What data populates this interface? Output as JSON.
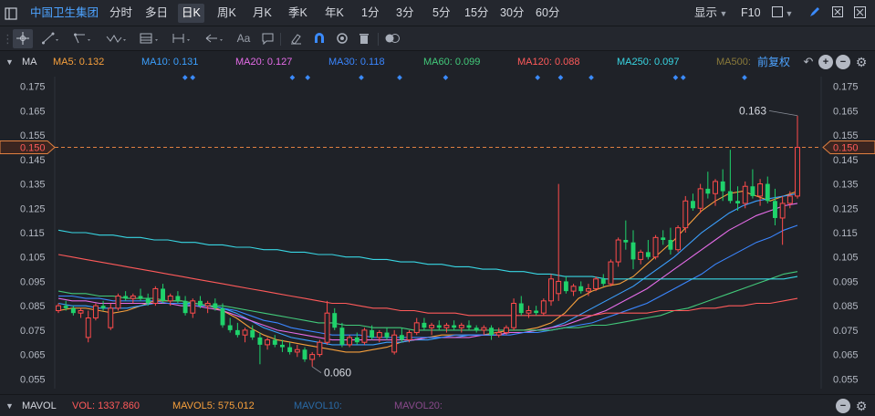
{
  "header": {
    "stock_name": "中国卫生集团",
    "periods": [
      "分时",
      "多日",
      "日K",
      "周K",
      "月K",
      "季K",
      "年K",
      "1分",
      "3分",
      "5分",
      "15分",
      "30分",
      "60分"
    ],
    "active_period": "日K",
    "display_label": "显示",
    "f10_label": "F10"
  },
  "toolbar": {
    "text_tool_label": "Aa"
  },
  "indicators": {
    "main_label": "MA",
    "items": [
      {
        "label": "MA5: 0.132",
        "color": "#f7a03c"
      },
      {
        "label": "MA10: 0.131",
        "color": "#3ba0ff"
      },
      {
        "label": "MA20: 0.127",
        "color": "#e56ce8"
      },
      {
        "label": "MA30: 0.118",
        "color": "#3a86ff"
      },
      {
        "label": "MA60: 0.099",
        "color": "#42c97a"
      },
      {
        "label": "MA120: 0.088",
        "color": "#ff5a5a"
      },
      {
        "label": "MA250: 0.097",
        "color": "#38d6e3"
      },
      {
        "label": "MA500:",
        "color": "#8a7a3a"
      }
    ],
    "adjust_label": "前复权"
  },
  "volume": {
    "label": "MAVOL",
    "vol": "VOL: 1337.860",
    "mavol5": "MAVOL5: 575.012",
    "mavol10": "MAVOL10:",
    "mavol20": "MAVOL20:"
  },
  "chart_data": {
    "type": "candlestick",
    "y_ticks": [
      "0.175",
      "0.165",
      "0.155",
      "0.145",
      "0.135",
      "0.125",
      "0.115",
      "0.105",
      "0.095",
      "0.085",
      "0.075",
      "0.065",
      "0.055"
    ],
    "ylim": [
      0.051,
      0.179
    ],
    "current_price_label": "0.150",
    "current_price": 0.15,
    "high_annotation": "0.163",
    "low_annotation": "0.060",
    "colors": {
      "up": "#ff4b4b",
      "down": "#1fd26b",
      "price_line": "#e08040"
    },
    "candles": [
      [
        0.083,
        0.086,
        0.082,
        0.085
      ],
      [
        0.085,
        0.087,
        0.083,
        0.084
      ],
      [
        0.084,
        0.085,
        0.081,
        0.082
      ],
      [
        0.082,
        0.084,
        0.08,
        0.083
      ],
      [
        0.072,
        0.083,
        0.07,
        0.08
      ],
      [
        0.08,
        0.086,
        0.079,
        0.085
      ],
      [
        0.085,
        0.087,
        0.083,
        0.084
      ],
      [
        0.076,
        0.086,
        0.075,
        0.084
      ],
      [
        0.084,
        0.09,
        0.083,
        0.089
      ],
      [
        0.089,
        0.091,
        0.087,
        0.088
      ],
      [
        0.088,
        0.09,
        0.086,
        0.089
      ],
      [
        0.089,
        0.092,
        0.087,
        0.088
      ],
      [
        0.088,
        0.09,
        0.085,
        0.086
      ],
      [
        0.086,
        0.093,
        0.085,
        0.092
      ],
      [
        0.092,
        0.094,
        0.086,
        0.087
      ],
      [
        0.087,
        0.09,
        0.085,
        0.089
      ],
      [
        0.089,
        0.091,
        0.086,
        0.087
      ],
      [
        0.087,
        0.089,
        0.081,
        0.082
      ],
      [
        0.082,
        0.088,
        0.08,
        0.087
      ],
      [
        0.087,
        0.089,
        0.084,
        0.085
      ],
      [
        0.085,
        0.087,
        0.082,
        0.086
      ],
      [
        0.086,
        0.088,
        0.083,
        0.084
      ],
      [
        0.084,
        0.086,
        0.076,
        0.077
      ],
      [
        0.077,
        0.08,
        0.074,
        0.075
      ],
      [
        0.075,
        0.078,
        0.072,
        0.073
      ],
      [
        0.073,
        0.076,
        0.07,
        0.075
      ],
      [
        0.075,
        0.077,
        0.071,
        0.072
      ],
      [
        0.072,
        0.074,
        0.061,
        0.069
      ],
      [
        0.069,
        0.072,
        0.067,
        0.071
      ],
      [
        0.071,
        0.073,
        0.068,
        0.069
      ],
      [
        0.069,
        0.071,
        0.066,
        0.068
      ],
      [
        0.068,
        0.07,
        0.065,
        0.066
      ],
      [
        0.066,
        0.069,
        0.064,
        0.067
      ],
      [
        0.067,
        0.068,
        0.062,
        0.063
      ],
      [
        0.063,
        0.066,
        0.06,
        0.065
      ],
      [
        0.065,
        0.071,
        0.064,
        0.07
      ],
      [
        0.07,
        0.087,
        0.069,
        0.082
      ],
      [
        0.082,
        0.084,
        0.075,
        0.076
      ],
      [
        0.076,
        0.078,
        0.068,
        0.069
      ],
      [
        0.069,
        0.073,
        0.068,
        0.072
      ],
      [
        0.072,
        0.074,
        0.069,
        0.07
      ],
      [
        0.07,
        0.076,
        0.069,
        0.075
      ],
      [
        0.075,
        0.077,
        0.071,
        0.072
      ],
      [
        0.072,
        0.075,
        0.07,
        0.074
      ],
      [
        0.074,
        0.076,
        0.071,
        0.072
      ],
      [
        0.066,
        0.075,
        0.065,
        0.073
      ],
      [
        0.073,
        0.076,
        0.07,
        0.071
      ],
      [
        0.071,
        0.075,
        0.07,
        0.074
      ],
      [
        0.074,
        0.08,
        0.073,
        0.078
      ],
      [
        0.078,
        0.08,
        0.075,
        0.076
      ],
      [
        0.076,
        0.078,
        0.073,
        0.077
      ],
      [
        0.077,
        0.079,
        0.075,
        0.076
      ],
      [
        0.076,
        0.078,
        0.074,
        0.077
      ],
      [
        0.077,
        0.079,
        0.075,
        0.076
      ],
      [
        0.076,
        0.078,
        0.074,
        0.077
      ],
      [
        0.077,
        0.079,
        0.075,
        0.076
      ],
      [
        0.076,
        0.077,
        0.074,
        0.075
      ],
      [
        0.075,
        0.077,
        0.073,
        0.076
      ],
      [
        0.076,
        0.077,
        0.071,
        0.073
      ],
      [
        0.073,
        0.076,
        0.072,
        0.074
      ],
      [
        0.074,
        0.077,
        0.073,
        0.076
      ],
      [
        0.076,
        0.088,
        0.075,
        0.086
      ],
      [
        0.086,
        0.089,
        0.081,
        0.082
      ],
      [
        0.082,
        0.085,
        0.08,
        0.083
      ],
      [
        0.083,
        0.085,
        0.081,
        0.082
      ],
      [
        0.082,
        0.088,
        0.081,
        0.087
      ],
      [
        0.087,
        0.098,
        0.085,
        0.096
      ],
      [
        0.09,
        0.135,
        0.087,
        0.095
      ],
      [
        0.095,
        0.097,
        0.09,
        0.091
      ],
      [
        0.091,
        0.094,
        0.089,
        0.093
      ],
      [
        0.093,
        0.095,
        0.09,
        0.091
      ],
      [
        0.091,
        0.094,
        0.089,
        0.092
      ],
      [
        0.092,
        0.097,
        0.091,
        0.096
      ],
      [
        0.096,
        0.098,
        0.093,
        0.094
      ],
      [
        0.094,
        0.104,
        0.093,
        0.103
      ],
      [
        0.103,
        0.113,
        0.101,
        0.112
      ],
      [
        0.112,
        0.12,
        0.108,
        0.111
      ],
      [
        0.111,
        0.116,
        0.1,
        0.104
      ],
      [
        0.104,
        0.108,
        0.102,
        0.107
      ],
      [
        0.107,
        0.112,
        0.104,
        0.105
      ],
      [
        0.105,
        0.114,
        0.104,
        0.113
      ],
      [
        0.113,
        0.116,
        0.11,
        0.112
      ],
      [
        0.112,
        0.117,
        0.106,
        0.108
      ],
      [
        0.108,
        0.118,
        0.107,
        0.117
      ],
      [
        0.117,
        0.13,
        0.115,
        0.128
      ],
      [
        0.128,
        0.131,
        0.124,
        0.125
      ],
      [
        0.125,
        0.135,
        0.123,
        0.133
      ],
      [
        0.133,
        0.14,
        0.129,
        0.131
      ],
      [
        0.131,
        0.137,
        0.126,
        0.136
      ],
      [
        0.136,
        0.141,
        0.128,
        0.132
      ],
      [
        0.132,
        0.149,
        0.127,
        0.128
      ],
      [
        0.128,
        0.134,
        0.124,
        0.127
      ],
      [
        0.127,
        0.136,
        0.125,
        0.134
      ],
      [
        0.134,
        0.141,
        0.129,
        0.13
      ],
      [
        0.13,
        0.137,
        0.126,
        0.135
      ],
      [
        0.135,
        0.138,
        0.127,
        0.128
      ],
      [
        0.128,
        0.133,
        0.118,
        0.121
      ],
      [
        0.121,
        0.13,
        0.11,
        0.127
      ],
      [
        0.127,
        0.132,
        0.125,
        0.13
      ],
      [
        0.13,
        0.163,
        0.129,
        0.15
      ]
    ],
    "ma_lines": [
      {
        "name": "MA5",
        "color": "#f7a03c",
        "values": [
          0.083,
          0.084,
          0.084,
          0.083,
          0.082,
          0.083,
          0.085,
          0.087,
          0.087,
          0.087,
          0.086,
          0.085,
          0.083,
          0.08,
          0.076,
          0.073,
          0.071,
          0.07,
          0.069,
          0.068,
          0.067,
          0.066,
          0.066,
          0.067,
          0.068,
          0.07,
          0.071,
          0.072,
          0.073,
          0.073,
          0.073,
          0.073,
          0.074,
          0.075,
          0.075,
          0.076,
          0.078,
          0.082,
          0.088,
          0.091,
          0.093,
          0.094,
          0.097,
          0.102,
          0.107,
          0.112,
          0.118,
          0.124,
          0.128,
          0.131,
          0.132,
          0.13,
          0.128,
          0.13,
          0.132
        ]
      },
      {
        "name": "MA10",
        "color": "#3ba0ff",
        "values": [
          0.086,
          0.085,
          0.085,
          0.084,
          0.084,
          0.084,
          0.085,
          0.086,
          0.086,
          0.086,
          0.086,
          0.085,
          0.084,
          0.082,
          0.079,
          0.076,
          0.074,
          0.072,
          0.071,
          0.07,
          0.069,
          0.069,
          0.069,
          0.069,
          0.07,
          0.07,
          0.071,
          0.071,
          0.072,
          0.072,
          0.073,
          0.073,
          0.073,
          0.074,
          0.074,
          0.075,
          0.076,
          0.078,
          0.081,
          0.084,
          0.087,
          0.09,
          0.093,
          0.097,
          0.101,
          0.105,
          0.11,
          0.115,
          0.119,
          0.123,
          0.126,
          0.128,
          0.129,
          0.13,
          0.131
        ]
      },
      {
        "name": "MA20",
        "color": "#e56ce8",
        "values": [
          0.088,
          0.087,
          0.087,
          0.086,
          0.086,
          0.086,
          0.086,
          0.086,
          0.086,
          0.085,
          0.085,
          0.084,
          0.083,
          0.081,
          0.079,
          0.077,
          0.075,
          0.074,
          0.073,
          0.072,
          0.071,
          0.071,
          0.071,
          0.071,
          0.071,
          0.071,
          0.071,
          0.072,
          0.072,
          0.072,
          0.072,
          0.073,
          0.073,
          0.074,
          0.074,
          0.075,
          0.076,
          0.077,
          0.079,
          0.081,
          0.083,
          0.086,
          0.089,
          0.092,
          0.096,
          0.1,
          0.104,
          0.108,
          0.112,
          0.116,
          0.119,
          0.122,
          0.124,
          0.126,
          0.127
        ]
      },
      {
        "name": "MA30",
        "color": "#3a86ff",
        "values": [
          0.089,
          0.089,
          0.088,
          0.088,
          0.087,
          0.087,
          0.087,
          0.087,
          0.086,
          0.086,
          0.085,
          0.085,
          0.084,
          0.083,
          0.081,
          0.079,
          0.078,
          0.076,
          0.075,
          0.074,
          0.073,
          0.073,
          0.073,
          0.072,
          0.072,
          0.072,
          0.072,
          0.072,
          0.072,
          0.073,
          0.073,
          0.073,
          0.073,
          0.073,
          0.074,
          0.074,
          0.075,
          0.076,
          0.077,
          0.078,
          0.08,
          0.082,
          0.084,
          0.086,
          0.089,
          0.092,
          0.095,
          0.098,
          0.102,
          0.105,
          0.108,
          0.111,
          0.113,
          0.116,
          0.118
        ]
      },
      {
        "name": "MA60",
        "color": "#42c97a",
        "values": [
          0.091,
          0.09,
          0.09,
          0.089,
          0.089,
          0.088,
          0.088,
          0.088,
          0.087,
          0.087,
          0.086,
          0.085,
          0.085,
          0.084,
          0.083,
          0.082,
          0.081,
          0.08,
          0.079,
          0.078,
          0.078,
          0.077,
          0.077,
          0.076,
          0.076,
          0.076,
          0.075,
          0.075,
          0.075,
          0.075,
          0.075,
          0.075,
          0.075,
          0.075,
          0.075,
          0.075,
          0.075,
          0.076,
          0.076,
          0.077,
          0.077,
          0.078,
          0.079,
          0.08,
          0.081,
          0.083,
          0.084,
          0.086,
          0.088,
          0.09,
          0.092,
          0.094,
          0.096,
          0.098,
          0.099
        ]
      },
      {
        "name": "MA120",
        "color": "#ff5a5a",
        "values": [
          0.106,
          0.105,
          0.104,
          0.103,
          0.102,
          0.101,
          0.1,
          0.099,
          0.098,
          0.097,
          0.096,
          0.095,
          0.094,
          0.093,
          0.092,
          0.091,
          0.09,
          0.089,
          0.088,
          0.087,
          0.086,
          0.086,
          0.085,
          0.084,
          0.084,
          0.083,
          0.083,
          0.082,
          0.082,
          0.082,
          0.081,
          0.081,
          0.081,
          0.081,
          0.081,
          0.081,
          0.081,
          0.081,
          0.081,
          0.081,
          0.082,
          0.082,
          0.082,
          0.082,
          0.083,
          0.083,
          0.083,
          0.084,
          0.084,
          0.085,
          0.085,
          0.086,
          0.086,
          0.087,
          0.088
        ]
      },
      {
        "name": "MA250",
        "color": "#38d6e3",
        "values": [
          0.116,
          0.115,
          0.115,
          0.114,
          0.114,
          0.113,
          0.113,
          0.112,
          0.112,
          0.111,
          0.111,
          0.11,
          0.11,
          0.109,
          0.109,
          0.108,
          0.108,
          0.107,
          0.107,
          0.106,
          0.106,
          0.105,
          0.105,
          0.104,
          0.104,
          0.103,
          0.103,
          0.102,
          0.102,
          0.101,
          0.101,
          0.1,
          0.1,
          0.099,
          0.099,
          0.098,
          0.098,
          0.097,
          0.097,
          0.097,
          0.096,
          0.096,
          0.096,
          0.096,
          0.096,
          0.096,
          0.096,
          0.096,
          0.096,
          0.096,
          0.096,
          0.096,
          0.096,
          0.096,
          0.097
        ]
      }
    ],
    "markers_count": 13
  }
}
